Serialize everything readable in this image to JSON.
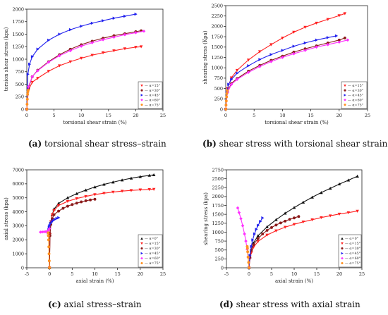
{
  "chart_data": [
    {
      "type": "line",
      "caption_letter": "(a)",
      "caption_text": " torsional shear stress–strain",
      "xlabel": "torsional shear strain (%)",
      "ylabel": "torsion shear stress (kpa)",
      "xlim": [
        0,
        25
      ],
      "ylim": [
        0,
        2000
      ],
      "xticks": [
        "0",
        "5",
        "10",
        "15",
        "20",
        "25"
      ],
      "yticks": [
        "0",
        "250",
        "500",
        "750",
        "1000",
        "1250",
        "1500",
        "1750",
        "2000"
      ],
      "xtick_values": [
        0,
        5,
        10,
        15,
        20,
        25
      ],
      "ytick_values": [
        0,
        250,
        500,
        750,
        1000,
        1250,
        1500,
        1750,
        2000
      ],
      "legend_position": "bottom-right",
      "series": [
        {
          "name": "— α=15°",
          "color": "#ff2020",
          "marker": "tri-down",
          "x": [
            0,
            0.3,
            1,
            2,
            4,
            6,
            8,
            10,
            12,
            14,
            16,
            18,
            20,
            21
          ],
          "y": [
            0,
            380,
            540,
            620,
            760,
            870,
            950,
            1020,
            1080,
            1130,
            1170,
            1210,
            1240,
            1250
          ]
        },
        {
          "name": "— α=30°",
          "color": "#8b1a1a",
          "marker": "circle",
          "x": [
            0,
            0.3,
            1,
            2,
            4,
            6,
            8,
            10,
            12,
            14,
            16,
            18,
            20,
            21
          ],
          "y": [
            0,
            420,
            650,
            780,
            950,
            1090,
            1200,
            1290,
            1360,
            1420,
            1470,
            1510,
            1550,
            1570
          ]
        },
        {
          "name": "— α=45°",
          "color": "#2020ee",
          "marker": "tri-right",
          "x": [
            0,
            0.2,
            0.5,
            1,
            2,
            4,
            6,
            8,
            10,
            12,
            14,
            16,
            18,
            20
          ],
          "y": [
            0,
            700,
            900,
            1050,
            1200,
            1380,
            1500,
            1590,
            1660,
            1720,
            1770,
            1820,
            1860,
            1900
          ]
        },
        {
          "name": "— α=60°",
          "color": "#ff30ff",
          "marker": "diamond",
          "x": [
            0,
            0.3,
            1,
            2,
            4,
            6,
            8,
            10,
            12,
            14,
            16,
            18,
            20,
            21.5
          ],
          "y": [
            0,
            450,
            650,
            770,
            940,
            1070,
            1170,
            1260,
            1330,
            1390,
            1440,
            1490,
            1530,
            1560
          ]
        },
        {
          "name": "— α=75°",
          "color": "#ff9020",
          "marker": "circle",
          "x": [
            0,
            0.05,
            0.1,
            0.15,
            0.2,
            0.25
          ],
          "y": [
            0,
            100,
            200,
            300,
            350,
            380
          ]
        }
      ]
    },
    {
      "type": "line",
      "caption_letter": "(b)",
      "caption_text": " shear stress with torsional shear strain",
      "xlabel": "torsional shear strain (%)",
      "ylabel": "shearing stress (Kpa)",
      "xlim": [
        0,
        25
      ],
      "ylim": [
        0,
        2500
      ],
      "xticks": [
        "0",
        "5",
        "10",
        "15",
        "20",
        "25"
      ],
      "yticks": [
        "0",
        "250",
        "500",
        "750",
        "1000",
        "1250",
        "1500",
        "1750",
        "2000",
        "2250",
        "2500"
      ],
      "xtick_values": [
        0,
        5,
        10,
        15,
        20,
        25
      ],
      "ytick_values": [
        0,
        250,
        500,
        750,
        1000,
        1250,
        1500,
        1750,
        2000,
        2250,
        2500
      ],
      "legend_position": "bottom-right",
      "series": [
        {
          "name": "— α=15°",
          "color": "#ff2020",
          "marker": "tri-down",
          "x": [
            0,
            0.3,
            1,
            2,
            4,
            6,
            8,
            10,
            12,
            14,
            16,
            18,
            20,
            21
          ],
          "y": [
            0,
            500,
            760,
            940,
            1190,
            1390,
            1560,
            1720,
            1860,
            1980,
            2080,
            2170,
            2260,
            2310
          ]
        },
        {
          "name": "— α=30°",
          "color": "#8b1a1a",
          "marker": "circle",
          "x": [
            0,
            0.3,
            1,
            2,
            4,
            6,
            8,
            10,
            12,
            14,
            16,
            18,
            20,
            21
          ],
          "y": [
            0,
            420,
            620,
            740,
            920,
            1060,
            1180,
            1280,
            1380,
            1460,
            1530,
            1600,
            1670,
            1720
          ]
        },
        {
          "name": "— α=45°",
          "color": "#2020ee",
          "marker": "tri-right",
          "x": [
            0,
            0.2,
            0.5,
            1,
            2,
            4,
            6,
            8,
            10,
            12,
            14,
            16,
            18,
            19.5
          ],
          "y": [
            0,
            420,
            600,
            720,
            870,
            1050,
            1200,
            1320,
            1420,
            1520,
            1600,
            1670,
            1730,
            1770
          ]
        },
        {
          "name": "— α=60°",
          "color": "#ff30ff",
          "marker": "diamond",
          "x": [
            0,
            0.3,
            1,
            2,
            4,
            6,
            8,
            10,
            12,
            14,
            16,
            18,
            20,
            21.5
          ],
          "y": [
            0,
            400,
            600,
            720,
            890,
            1030,
            1150,
            1250,
            1340,
            1420,
            1500,
            1560,
            1620,
            1670
          ]
        },
        {
          "name": "— α=75°",
          "color": "#ff9020",
          "marker": "circle",
          "x": [
            0,
            0.05,
            0.1,
            0.15,
            0.2,
            0.25
          ],
          "y": [
            0,
            100,
            200,
            300,
            380,
            450
          ]
        }
      ]
    },
    {
      "type": "line",
      "caption_letter": "(c)",
      "caption_text": " axial stress–strain",
      "xlabel": "axial strain (%)",
      "ylabel": "axial stress (kpa)",
      "xlim": [
        -5,
        25
      ],
      "ylim": [
        0,
        7000
      ],
      "xticks": [
        "-5",
        "0",
        "5",
        "10",
        "15",
        "20",
        "25"
      ],
      "yticks": [
        "0",
        "1000",
        "2000",
        "3000",
        "4000",
        "5000",
        "6000",
        "7000"
      ],
      "xtick_values": [
        -5,
        0,
        5,
        10,
        15,
        20,
        25
      ],
      "ytick_values": [
        0,
        1000,
        2000,
        3000,
        4000,
        5000,
        6000,
        7000
      ],
      "legend_position": "bottom-right",
      "series": [
        {
          "name": "— α=0°",
          "color": "#111111",
          "marker": "tri-up",
          "x": [
            0,
            0.1,
            0.3,
            0.6,
            1,
            2,
            4,
            6,
            8,
            10,
            12,
            14,
            16,
            18,
            20,
            22,
            23
          ],
          "y": [
            0,
            2500,
            3300,
            3800,
            4200,
            4600,
            5000,
            5300,
            5550,
            5770,
            5960,
            6120,
            6270,
            6400,
            6510,
            6600,
            6640
          ]
        },
        {
          "name": "— α=15°",
          "color": "#ff2020",
          "marker": "tri-down",
          "x": [
            0,
            0.1,
            0.3,
            0.6,
            1,
            2,
            4,
            6,
            8,
            10,
            12,
            14,
            16,
            18,
            20,
            22,
            23
          ],
          "y": [
            0,
            2400,
            3300,
            3800,
            4100,
            4450,
            4750,
            4950,
            5100,
            5230,
            5330,
            5410,
            5480,
            5530,
            5570,
            5600,
            5610
          ]
        },
        {
          "name": "— α=30°",
          "color": "#8b1a1a",
          "marker": "circle",
          "x": [
            0,
            0.1,
            0.3,
            0.6,
            1,
            2,
            3,
            4,
            5,
            6,
            7,
            8,
            9,
            10
          ],
          "y": [
            0,
            2300,
            3100,
            3500,
            3800,
            4050,
            4250,
            4400,
            4520,
            4620,
            4710,
            4790,
            4850,
            4900
          ]
        },
        {
          "name": "— α=45°",
          "color": "#2020ee",
          "marker": "tri-right",
          "x": [
            -0.3,
            -0.2,
            -0.1,
            0,
            0.2,
            0.5,
            0.8,
            1.2,
            1.6,
            2
          ],
          "y": [
            2500,
            2700,
            2900,
            3000,
            3150,
            3280,
            3380,
            3460,
            3530,
            3580
          ]
        },
        {
          "name": "— α=60°",
          "color": "#ff30ff",
          "marker": "diamond",
          "x": [
            -2,
            -1.6,
            -1.2,
            -0.8,
            -0.4,
            -0.2,
            0
          ],
          "y": [
            2550,
            2560,
            2570,
            2580,
            2620,
            2700,
            2800
          ]
        },
        {
          "name": "— α=75°",
          "color": "#ff9020",
          "marker": "circle",
          "x": [
            0,
            -0.05,
            -0.1,
            -0.15,
            -0.2,
            -0.25,
            -0.3
          ],
          "y": [
            0,
            500,
            1000,
            1500,
            2000,
            2300,
            2500
          ]
        }
      ]
    },
    {
      "type": "line",
      "caption_letter": "(d)",
      "caption_text": " shear stress with axial strain",
      "xlabel": "axial strain (%)",
      "ylabel": "shearing stress (kpa)",
      "xlim": [
        -5,
        25
      ],
      "ylim": [
        0,
        2750
      ],
      "xticks": [
        "-5",
        "0",
        "5",
        "10",
        "15",
        "20",
        "25"
      ],
      "yticks": [
        "0",
        "250",
        "500",
        "750",
        "1000",
        "1250",
        "1500",
        "1750",
        "2000",
        "2250",
        "2500",
        "2750"
      ],
      "xtick_values": [
        -5,
        0,
        5,
        10,
        15,
        20,
        25
      ],
      "ytick_values": [
        0,
        250,
        500,
        750,
        1000,
        1250,
        1500,
        1750,
        2000,
        2250,
        2500,
        2750
      ],
      "legend_position": "bottom-right",
      "series": [
        {
          "name": "— α=0°",
          "color": "#111111",
          "marker": "tri-up",
          "x": [
            0,
            0.2,
            0.5,
            1,
            2,
            4,
            6,
            8,
            10,
            12,
            14,
            16,
            18,
            20,
            22,
            24
          ],
          "y": [
            0,
            300,
            500,
            700,
            900,
            1150,
            1350,
            1530,
            1690,
            1840,
            1980,
            2110,
            2230,
            2350,
            2460,
            2570
          ]
        },
        {
          "name": "— α=15°",
          "color": "#ff2020",
          "marker": "tri-down",
          "x": [
            0,
            0.2,
            0.5,
            1,
            2,
            4,
            6,
            8,
            10,
            12,
            14,
            16,
            18,
            20,
            22,
            24
          ],
          "y": [
            0,
            250,
            420,
            580,
            740,
            920,
            1040,
            1140,
            1220,
            1290,
            1350,
            1410,
            1460,
            1510,
            1550,
            1590
          ]
        },
        {
          "name": "— α=30°",
          "color": "#8b1a1a",
          "marker": "circle",
          "x": [
            0,
            0.2,
            0.5,
            1,
            2,
            3,
            4,
            5,
            6,
            7,
            8,
            9,
            10,
            11
          ],
          "y": [
            0,
            300,
            500,
            650,
            820,
            950,
            1050,
            1130,
            1200,
            1260,
            1310,
            1360,
            1400,
            1440
          ]
        },
        {
          "name": "— α=45°",
          "color": "#2020ee",
          "marker": "tri-right",
          "x": [
            0,
            0.2,
            0.5,
            0.8,
            1.2,
            1.6,
            2,
            2.5,
            3
          ],
          "y": [
            0,
            350,
            600,
            780,
            950,
            1080,
            1190,
            1300,
            1400
          ]
        },
        {
          "name": "— α=60°",
          "color": "#ff30ff",
          "marker": "diamond",
          "x": [
            -2.5,
            -2.2,
            -1.8,
            -1.4,
            -1,
            -0.7,
            -0.4,
            -0.2,
            0
          ],
          "y": [
            1680,
            1550,
            1380,
            1180,
            950,
            750,
            520,
            300,
            0
          ]
        },
        {
          "name": "— α=75°",
          "color": "#ff9020",
          "marker": "circle",
          "x": [
            0,
            -0.1,
            -0.2,
            -0.3,
            -0.35,
            -0.4
          ],
          "y": [
            0,
            150,
            300,
            450,
            550,
            600
          ]
        }
      ]
    }
  ]
}
